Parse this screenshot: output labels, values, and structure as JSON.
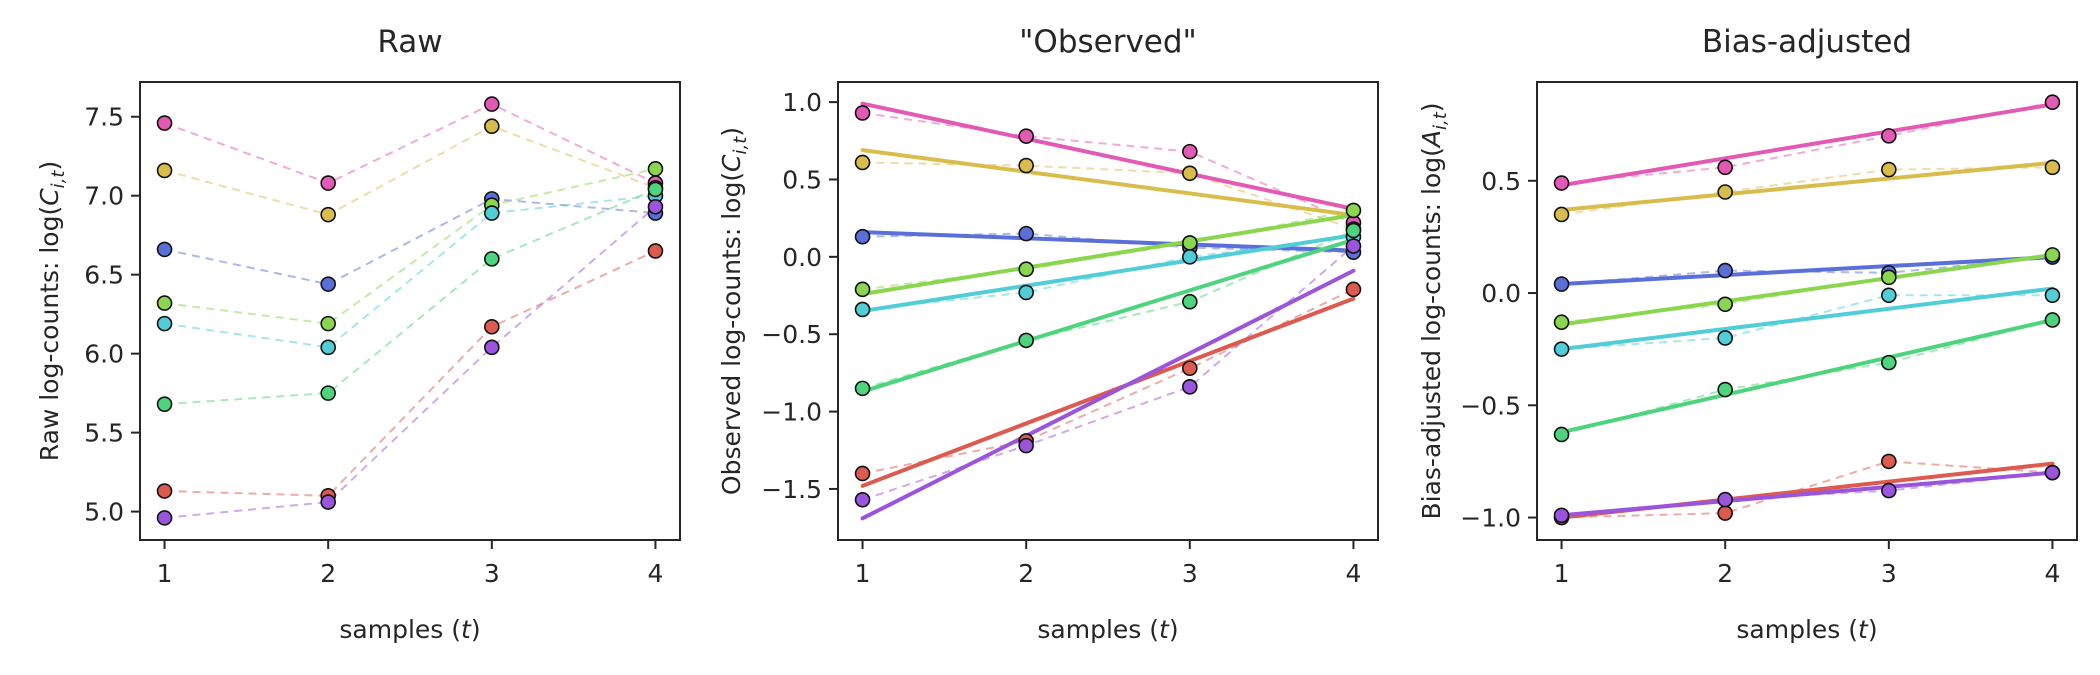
{
  "x_label": "samples (t)",
  "chart_data": [
    {
      "type": "line",
      "title": "Raw",
      "xlabel": "samples (t)",
      "ylabel": "Raw log-counts: log(C_{i,t})",
      "x": [
        1,
        2,
        3,
        4
      ],
      "xlim": [
        0.85,
        4.15
      ],
      "ylim": [
        4.82,
        7.72
      ],
      "yticks": [
        5.0,
        5.5,
        6.0,
        6.5,
        7.0,
        7.5
      ],
      "grid": false,
      "series": [
        {
          "color": "#e25ab4",
          "values": [
            7.46,
            7.08,
            7.58,
            7.08
          ]
        },
        {
          "color": "#d9bd4c",
          "values": [
            7.16,
            6.88,
            7.44,
            7.05
          ]
        },
        {
          "color": "#5a6fd8",
          "values": [
            6.66,
            6.44,
            6.98,
            6.89
          ]
        },
        {
          "color": "#8bd64f",
          "values": [
            6.32,
            6.19,
            6.94,
            7.17
          ]
        },
        {
          "color": "#50cdd6",
          "values": [
            6.19,
            6.04,
            6.89,
            7.0
          ]
        },
        {
          "color": "#4fd47e",
          "values": [
            5.68,
            5.75,
            6.6,
            7.04
          ]
        },
        {
          "color": "#dc5a4f",
          "values": [
            5.13,
            5.1,
            6.17,
            6.65
          ]
        },
        {
          "color": "#9a55dc",
          "values": [
            4.96,
            5.06,
            6.04,
            6.93
          ]
        }
      ]
    },
    {
      "type": "line",
      "title": "\"Observed\"",
      "xlabel": "samples (t)",
      "ylabel": "Observed log-counts: log(C_{i,t})",
      "x": [
        1,
        2,
        3,
        4
      ],
      "xlim": [
        0.85,
        4.15
      ],
      "ylim": [
        -1.83,
        1.13
      ],
      "yticks": [
        -1.5,
        -1.0,
        -0.5,
        0.0,
        0.5,
        1.0
      ],
      "grid": false,
      "series": [
        {
          "color": "#e25ab4",
          "values": [
            0.93,
            0.78,
            0.68,
            0.22
          ],
          "fit": [
            0.99,
            0.76,
            0.54,
            0.31
          ]
        },
        {
          "color": "#d9bd4c",
          "values": [
            0.61,
            0.59,
            0.54,
            0.18
          ],
          "fit": [
            0.69,
            0.55,
            0.41,
            0.27
          ]
        },
        {
          "color": "#5a6fd8",
          "values": [
            0.13,
            0.15,
            0.06,
            0.03
          ],
          "fit": [
            0.16,
            0.12,
            0.08,
            0.04
          ]
        },
        {
          "color": "#8bd64f",
          "values": [
            -0.21,
            -0.08,
            0.09,
            0.3
          ],
          "fit": [
            -0.24,
            -0.07,
            0.1,
            0.27
          ]
        },
        {
          "color": "#50cdd6",
          "values": [
            -0.34,
            -0.23,
            0.0,
            0.13
          ],
          "fit": [
            -0.35,
            -0.19,
            -0.02,
            0.14
          ]
        },
        {
          "color": "#4fd47e",
          "values": [
            -0.85,
            -0.54,
            -0.29,
            0.17
          ],
          "fit": [
            -0.87,
            -0.54,
            -0.21,
            0.11
          ]
        },
        {
          "color": "#dc5a4f",
          "values": [
            -1.4,
            -1.19,
            -0.72,
            -0.21
          ],
          "fit": [
            -1.48,
            -1.08,
            -0.67,
            -0.27
          ]
        },
        {
          "color": "#9a55dc",
          "values": [
            -1.57,
            -1.22,
            -0.84,
            0.07
          ],
          "fit": [
            -1.69,
            -1.15,
            -0.62,
            -0.09
          ]
        }
      ]
    },
    {
      "type": "line",
      "title": "Bias-adjusted",
      "xlabel": "samples (t)",
      "ylabel": "Bias-adjusted log-counts: log(A_{i,t})",
      "x": [
        1,
        2,
        3,
        4
      ],
      "xlim": [
        0.85,
        4.15
      ],
      "ylim": [
        -1.1,
        0.94
      ],
      "yticks": [
        -1.0,
        -0.5,
        0.0,
        0.5
      ],
      "grid": false,
      "series": [
        {
          "color": "#e25ab4",
          "values": [
            0.49,
            0.56,
            0.7,
            0.85
          ],
          "fit": [
            0.48,
            0.6,
            0.72,
            0.84
          ]
        },
        {
          "color": "#d9bd4c",
          "values": [
            0.35,
            0.45,
            0.55,
            0.56
          ],
          "fit": [
            0.37,
            0.44,
            0.51,
            0.58
          ]
        },
        {
          "color": "#5a6fd8",
          "values": [
            0.04,
            0.1,
            0.09,
            0.16
          ],
          "fit": [
            0.04,
            0.08,
            0.12,
            0.16
          ]
        },
        {
          "color": "#8bd64f",
          "values": [
            -0.13,
            -0.05,
            0.07,
            0.17
          ],
          "fit": [
            -0.14,
            -0.04,
            0.07,
            0.17
          ]
        },
        {
          "color": "#50cdd6",
          "values": [
            -0.25,
            -0.2,
            -0.01,
            -0.01
          ],
          "fit": [
            -0.25,
            -0.16,
            -0.07,
            0.02
          ]
        },
        {
          "color": "#4fd47e",
          "values": [
            -0.63,
            -0.43,
            -0.31,
            -0.12
          ],
          "fit": [
            -0.62,
            -0.45,
            -0.29,
            -0.12
          ]
        },
        {
          "color": "#dc5a4f",
          "values": [
            -1.0,
            -0.98,
            -0.75,
            -0.8
          ],
          "fit": [
            -1.0,
            -0.92,
            -0.84,
            -0.76
          ]
        },
        {
          "color": "#9a55dc",
          "values": [
            -0.99,
            -0.92,
            -0.88,
            -0.8
          ],
          "fit": [
            -0.99,
            -0.93,
            -0.86,
            -0.8
          ]
        }
      ]
    }
  ]
}
